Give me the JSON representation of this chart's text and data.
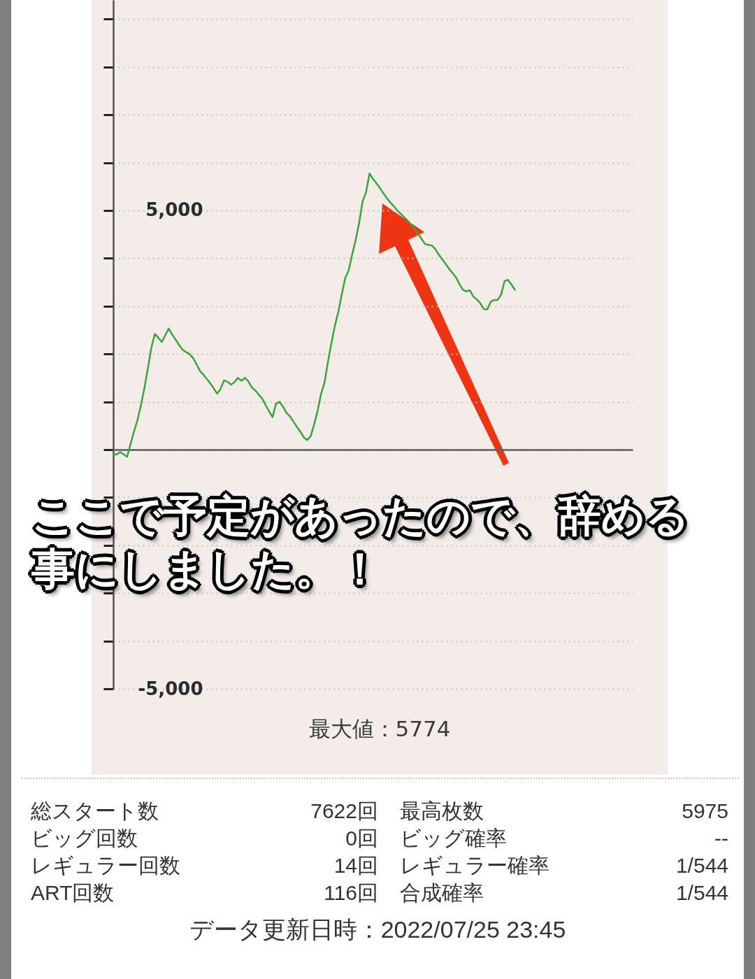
{
  "chart_data": {
    "type": "line",
    "categories": [
      null,
      null,
      null,
      null,
      null,
      null,
      null,
      null,
      null,
      null,
      null,
      null,
      null,
      null,
      null,
      null,
      null,
      null,
      null,
      null,
      null,
      null,
      null,
      null,
      null,
      null,
      null,
      null,
      null,
      null,
      null,
      null,
      null,
      null,
      null,
      null,
      null,
      null,
      null,
      null,
      null,
      null,
      null,
      null,
      null,
      null,
      null,
      null,
      null,
      null,
      null,
      null,
      null,
      null,
      null,
      null,
      null,
      null,
      null,
      null,
      null,
      null,
      null,
      null,
      null,
      null,
      null,
      null,
      null,
      null,
      null,
      null,
      null,
      null,
      null,
      null,
      null,
      null,
      null,
      null,
      null,
      null,
      null,
      null,
      null,
      null,
      null,
      null,
      null,
      null,
      null,
      null,
      null,
      null,
      null,
      null,
      null,
      null,
      null,
      null,
      null,
      null,
      null,
      null,
      null,
      null,
      null,
      null,
      null,
      null,
      null,
      null,
      null,
      null,
      null,
      null,
      null,
      null,
      null,
      null,
      null,
      null,
      null,
      null,
      null,
      null,
      null,
      null,
      null,
      null,
      null,
      null,
      null,
      null,
      null,
      null,
      null,
      null,
      null,
      null,
      null,
      null,
      null,
      null,
      null,
      null,
      null,
      null,
      null,
      null,
      null
    ],
    "series": [
      {
        "color": "#3aa53a",
        "values": [
          -100,
          -100,
          -50,
          -100,
          -150,
          120,
          380,
          620,
          930,
          1290,
          1700,
          2130,
          2420,
          2340,
          2250,
          2390,
          2530,
          2410,
          2300,
          2190,
          2090,
          2040,
          2000,
          1920,
          1790,
          1650,
          1570,
          1480,
          1390,
          1280,
          1170,
          1270,
          1450,
          1420,
          1360,
          1410,
          1500,
          1440,
          1500,
          1430,
          1300,
          1240,
          1150,
          1070,
          930,
          800,
          680,
          960,
          1000,
          900,
          770,
          700,
          590,
          480,
          380,
          260,
          200,
          280,
          520,
          810,
          1160,
          1400,
          1830,
          2230,
          2590,
          2880,
          3250,
          3590,
          3750,
          4080,
          4380,
          4740,
          5190,
          5380,
          5774,
          5660,
          5570,
          5470,
          5360,
          5260,
          5170,
          5090,
          5000,
          4930,
          4860,
          4790,
          4700,
          4610,
          4510,
          4410,
          4300,
          4280,
          4270,
          4190,
          4080,
          3980,
          3880,
          3780,
          3690,
          3600,
          3460,
          3340,
          3310,
          3330,
          3200,
          3140,
          3060,
          2940,
          2930,
          3090,
          3130,
          3130,
          3240,
          3520,
          3550,
          3450,
          3340,
          null,
          null,
          null,
          null,
          null,
          null,
          null,
          null,
          null,
          null,
          null,
          null,
          null,
          null,
          null,
          null,
          null,
          null,
          null,
          null,
          null,
          null,
          null,
          null,
          null,
          null,
          null,
          null,
          null,
          null,
          null,
          null,
          null,
          null
        ]
      }
    ],
    "ylim": [
      -5000,
      9400
    ],
    "yticks": [
      {
        "value": -5000,
        "label": "-5,000"
      },
      {
        "value": -4000,
        "label": null
      },
      {
        "value": -3000,
        "label": null
      },
      {
        "value": -2000,
        "label": null
      },
      {
        "value": -1000,
        "label": null
      },
      {
        "value": 0,
        "label": null
      },
      {
        "value": 1000,
        "label": null
      },
      {
        "value": 2000,
        "label": null
      },
      {
        "value": 3000,
        "label": null
      },
      {
        "value": 4000,
        "label": null
      },
      {
        "value": 5000,
        "label": "5,000"
      },
      {
        "value": 6000,
        "label": null
      },
      {
        "value": 7000,
        "label": null
      },
      {
        "value": 8000,
        "label": null
      },
      {
        "value": 9000,
        "label": null
      }
    ],
    "grid": "y",
    "legend": false,
    "marker": "none",
    "line_style": "solid",
    "tick_labels": "y",
    "annotations": [
      "ここで予定があったので、辞める事にしました。！",
      "最大値：5774",
      "総スタート数",
      "7622回",
      "最高枚数",
      "5975",
      "ビッグ回数",
      "0回",
      "ビッグ確率",
      "--",
      "レギュラー回数",
      "14回",
      "レギュラー確率",
      "1/544",
      "ART回数",
      "116回",
      "合成確率",
      "1/544",
      "データ更新日時：2022/07/25 23:45"
    ]
  }
}
